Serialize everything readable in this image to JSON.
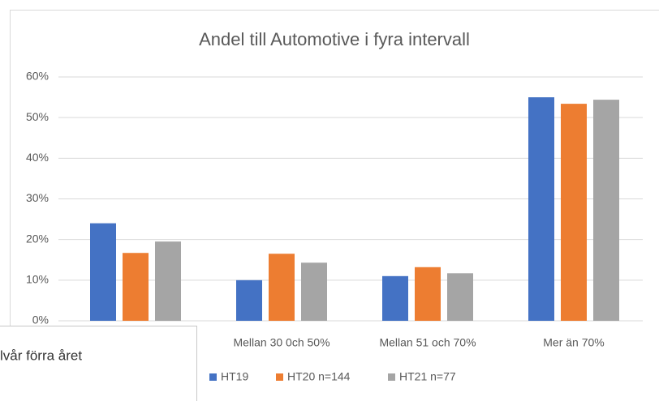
{
  "chart_data": {
    "type": "bar",
    "title": "Andel till Automotive i fyra intervall",
    "categories": [
      null,
      "Mellan 30 0ch 50%",
      "Mellan 51 och 70%",
      "Mer än 70%"
    ],
    "series": [
      {
        "name": "HT19",
        "color": "#4472c4",
        "values": [
          24,
          10,
          11,
          55
        ]
      },
      {
        "name": "HT20 n=144",
        "color": "#ed7d31",
        "values": [
          16.7,
          16.5,
          13.2,
          53.4
        ]
      },
      {
        "name": "HT21 n=77",
        "color": "#a5a5a5",
        "values": [
          19.5,
          14.3,
          11.7,
          54.4
        ]
      }
    ],
    "ylim": [
      0,
      60
    ],
    "yticks": [
      {
        "value": 0,
        "label": "0%"
      },
      {
        "value": 10,
        "label": "10%"
      },
      {
        "value": 20,
        "label": "20%"
      },
      {
        "value": 30,
        "label": "30%"
      },
      {
        "value": 40,
        "label": "40%"
      },
      {
        "value": 50,
        "label": "50%"
      },
      {
        "value": 60,
        "label": "60%"
      }
    ],
    "grid": true,
    "legend": "bottom"
  },
  "popup": {
    "text": "lvår förra året"
  }
}
